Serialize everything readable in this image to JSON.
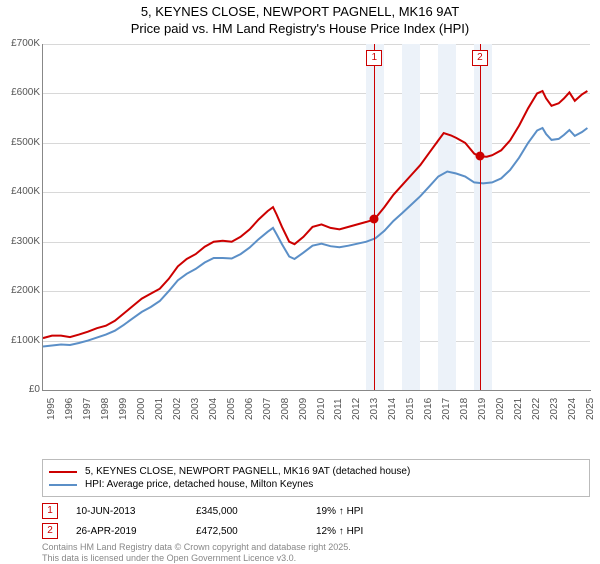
{
  "title_line1": "5, KEYNES CLOSE, NEWPORT PAGNELL, MK16 9AT",
  "title_line2": "Price paid vs. HM Land Registry's House Price Index (HPI)",
  "chart": {
    "type": "line",
    "x_domain": [
      1995,
      2025.5
    ],
    "y_domain": [
      0,
      700000
    ],
    "y_ticks": [
      0,
      100000,
      200000,
      300000,
      400000,
      500000,
      600000,
      700000
    ],
    "y_tick_labels": [
      "£0",
      "£100K",
      "£200K",
      "£300K",
      "£400K",
      "£500K",
      "£600K",
      "£700K"
    ],
    "x_ticks": [
      1995,
      1996,
      1997,
      1998,
      1999,
      2000,
      2001,
      2002,
      2003,
      2004,
      2005,
      2006,
      2007,
      2008,
      2009,
      2010,
      2011,
      2012,
      2013,
      2014,
      2015,
      2016,
      2017,
      2018,
      2019,
      2020,
      2021,
      2022,
      2023,
      2024,
      2025
    ],
    "grid_color": "#d8d8d8",
    "background_color": "#ffffff",
    "shaded_bands": [
      [
        2013,
        2014
      ],
      [
        2015,
        2016
      ],
      [
        2017,
        2018
      ],
      [
        2019,
        2020
      ]
    ],
    "shaded_color": "#ecf2f9",
    "series": [
      {
        "name": "5, KEYNES CLOSE, NEWPORT PAGNELL, MK16 9AT (detached house)",
        "color": "#cc0000",
        "width": 2,
        "points": [
          [
            1995,
            105000
          ],
          [
            1995.5,
            110000
          ],
          [
            1996,
            110000
          ],
          [
            1996.5,
            107000
          ],
          [
            1997,
            112000
          ],
          [
            1997.5,
            118000
          ],
          [
            1998,
            125000
          ],
          [
            1998.5,
            130000
          ],
          [
            1999,
            140000
          ],
          [
            1999.5,
            155000
          ],
          [
            2000,
            170000
          ],
          [
            2000.5,
            185000
          ],
          [
            2001,
            195000
          ],
          [
            2001.5,
            205000
          ],
          [
            2002,
            225000
          ],
          [
            2002.5,
            250000
          ],
          [
            2003,
            265000
          ],
          [
            2003.5,
            275000
          ],
          [
            2004,
            290000
          ],
          [
            2004.5,
            300000
          ],
          [
            2005,
            302000
          ],
          [
            2005.5,
            300000
          ],
          [
            2006,
            310000
          ],
          [
            2006.5,
            325000
          ],
          [
            2007,
            345000
          ],
          [
            2007.5,
            362000
          ],
          [
            2007.8,
            370000
          ],
          [
            2008,
            355000
          ],
          [
            2008.3,
            330000
          ],
          [
            2008.7,
            300000
          ],
          [
            2009,
            295000
          ],
          [
            2009.5,
            310000
          ],
          [
            2010,
            330000
          ],
          [
            2010.5,
            335000
          ],
          [
            2011,
            328000
          ],
          [
            2011.5,
            325000
          ],
          [
            2012,
            330000
          ],
          [
            2012.5,
            335000
          ],
          [
            2013,
            340000
          ],
          [
            2013.44,
            345000
          ],
          [
            2014,
            370000
          ],
          [
            2014.5,
            395000
          ],
          [
            2015,
            415000
          ],
          [
            2015.5,
            435000
          ],
          [
            2016,
            455000
          ],
          [
            2016.5,
            480000
          ],
          [
            2017,
            505000
          ],
          [
            2017.3,
            520000
          ],
          [
            2017.7,
            515000
          ],
          [
            2018,
            510000
          ],
          [
            2018.5,
            500000
          ],
          [
            2019,
            478000
          ],
          [
            2019.32,
            472500
          ],
          [
            2019.7,
            472000
          ],
          [
            2020,
            475000
          ],
          [
            2020.5,
            485000
          ],
          [
            2021,
            505000
          ],
          [
            2021.5,
            535000
          ],
          [
            2022,
            570000
          ],
          [
            2022.5,
            600000
          ],
          [
            2022.8,
            605000
          ],
          [
            2023,
            590000
          ],
          [
            2023.3,
            575000
          ],
          [
            2023.7,
            580000
          ],
          [
            2024,
            590000
          ],
          [
            2024.3,
            602000
          ],
          [
            2024.6,
            585000
          ],
          [
            2025,
            598000
          ],
          [
            2025.3,
            605000
          ]
        ]
      },
      {
        "name": "HPI: Average price, detached house, Milton Keynes",
        "color": "#5b8fc7",
        "width": 2,
        "points": [
          [
            1995,
            88000
          ],
          [
            1995.5,
            90000
          ],
          [
            1996,
            92000
          ],
          [
            1996.5,
            91000
          ],
          [
            1997,
            95000
          ],
          [
            1997.5,
            100000
          ],
          [
            1998,
            106000
          ],
          [
            1998.5,
            112000
          ],
          [
            1999,
            120000
          ],
          [
            1999.5,
            132000
          ],
          [
            2000,
            145000
          ],
          [
            2000.5,
            158000
          ],
          [
            2001,
            168000
          ],
          [
            2001.5,
            180000
          ],
          [
            2002,
            200000
          ],
          [
            2002.5,
            222000
          ],
          [
            2003,
            235000
          ],
          [
            2003.5,
            245000
          ],
          [
            2004,
            258000
          ],
          [
            2004.5,
            267000
          ],
          [
            2005,
            267000
          ],
          [
            2005.5,
            266000
          ],
          [
            2006,
            275000
          ],
          [
            2006.5,
            288000
          ],
          [
            2007,
            305000
          ],
          [
            2007.5,
            320000
          ],
          [
            2007.8,
            328000
          ],
          [
            2008,
            315000
          ],
          [
            2008.3,
            295000
          ],
          [
            2008.7,
            270000
          ],
          [
            2009,
            265000
          ],
          [
            2009.5,
            278000
          ],
          [
            2010,
            292000
          ],
          [
            2010.5,
            296000
          ],
          [
            2011,
            291000
          ],
          [
            2011.5,
            289000
          ],
          [
            2012,
            292000
          ],
          [
            2012.5,
            296000
          ],
          [
            2013,
            300000
          ],
          [
            2013.5,
            307000
          ],
          [
            2014,
            322000
          ],
          [
            2014.5,
            342000
          ],
          [
            2015,
            358000
          ],
          [
            2015.5,
            375000
          ],
          [
            2016,
            392000
          ],
          [
            2016.5,
            412000
          ],
          [
            2017,
            432000
          ],
          [
            2017.5,
            442000
          ],
          [
            2018,
            438000
          ],
          [
            2018.5,
            432000
          ],
          [
            2019,
            420000
          ],
          [
            2019.5,
            418000
          ],
          [
            2020,
            420000
          ],
          [
            2020.5,
            428000
          ],
          [
            2021,
            445000
          ],
          [
            2021.5,
            470000
          ],
          [
            2022,
            500000
          ],
          [
            2022.5,
            525000
          ],
          [
            2022.8,
            530000
          ],
          [
            2023,
            518000
          ],
          [
            2023.3,
            506000
          ],
          [
            2023.7,
            508000
          ],
          [
            2024,
            516000
          ],
          [
            2024.3,
            526000
          ],
          [
            2024.6,
            514000
          ],
          [
            2025,
            522000
          ],
          [
            2025.3,
            530000
          ]
        ]
      }
    ],
    "markers": [
      {
        "num": "1",
        "x": 2013.44,
        "y": 345000
      },
      {
        "num": "2",
        "x": 2019.32,
        "y": 472500
      }
    ]
  },
  "legend": {
    "series1_label": "5, KEYNES CLOSE, NEWPORT PAGNELL, MK16 9AT (detached house)",
    "series2_label": "HPI: Average price, detached house, Milton Keynes"
  },
  "events": [
    {
      "num": "1",
      "date": "10-JUN-2013",
      "price": "£345,000",
      "delta": "19% ↑ HPI"
    },
    {
      "num": "2",
      "date": "26-APR-2019",
      "price": "£472,500",
      "delta": "12% ↑ HPI"
    }
  ],
  "footer_line1": "Contains HM Land Registry data © Crown copyright and database right 2025.",
  "footer_line2": "This data is licensed under the Open Government Licence v3.0."
}
